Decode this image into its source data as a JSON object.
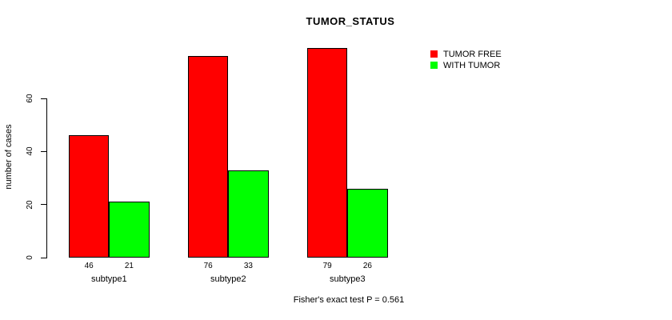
{
  "chart_data": {
    "type": "bar",
    "title": "TUMOR_STATUS",
    "categories": [
      "subtype1",
      "subtype2",
      "subtype3"
    ],
    "series": [
      {
        "name": "TUMOR FREE",
        "color": "#FF0000",
        "values": [
          46,
          76,
          79
        ]
      },
      {
        "name": "WITH TUMOR",
        "color": "#00FF00",
        "values": [
          21,
          33,
          26
        ]
      }
    ],
    "xlabel": "",
    "ylabel": "number of cases",
    "yticks": [
      0,
      20,
      40,
      60
    ],
    "ylim": [
      0,
      60
    ],
    "grid": false,
    "legend_position": "top-right",
    "bar_value_labels": [
      "46",
      "21",
      "76",
      "33",
      "79",
      "26"
    ],
    "annotation": "Fisher's exact test P = 0.561",
    "colors": {
      "tumor_free": "#FF0000",
      "with_tumor": "#00FF00",
      "axis": "#000000",
      "background": "#FFFFFF"
    }
  }
}
